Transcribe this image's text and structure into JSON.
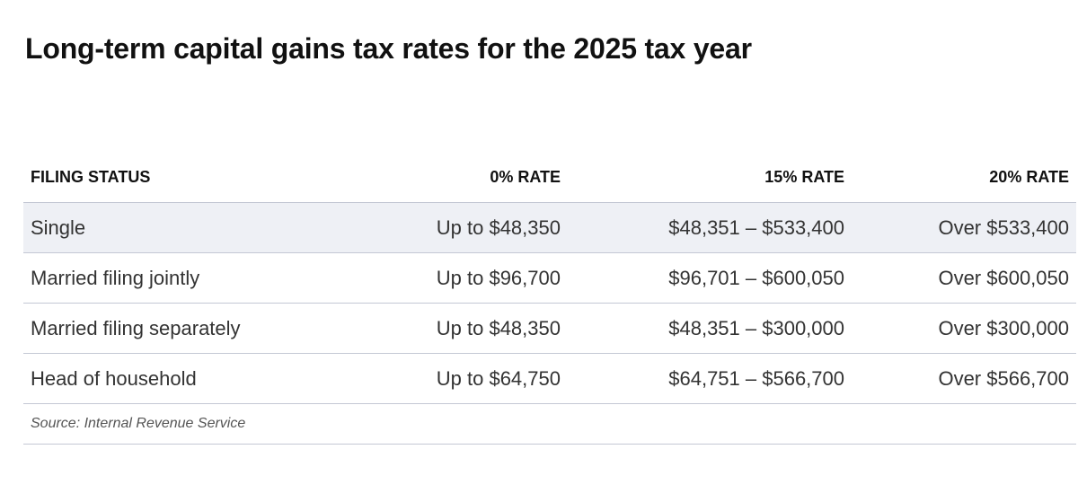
{
  "title": "Long-term capital gains tax rates for the 2025 tax year",
  "table": {
    "headers": [
      "FILING STATUS",
      "0% RATE",
      "15% RATE",
      "20% RATE"
    ],
    "rows": [
      [
        "Single",
        "Up to $48,350",
        "$48,351 – $533,400",
        "Over $533,400"
      ],
      [
        "Married filing jointly",
        "Up to $96,700",
        "$96,701 – $600,050",
        "Over $600,050"
      ],
      [
        "Married filing separately",
        "Up to $48,350",
        "$48,351 – $300,000",
        "Over $300,000"
      ],
      [
        "Head of household",
        "Up to $64,750",
        "$64,751 – $566,700",
        "Over $566,700"
      ]
    ]
  },
  "source": "Source: Internal Revenue Service",
  "colors": {
    "shaded_row": "#eef0f5",
    "rule": "#c4c8d4",
    "title": "#111111"
  }
}
